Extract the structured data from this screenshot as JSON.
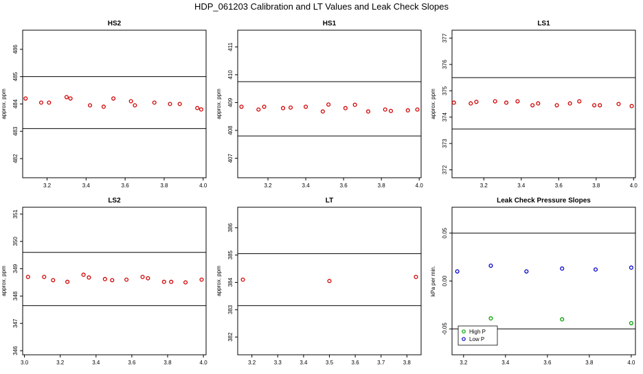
{
  "title": "HDP_061203  Calibration and LT Values and Leak Check Slopes",
  "chart_data": [
    {
      "type": "scatter",
      "title": "HS2",
      "ylabel": "approx. ppm",
      "xlim": [
        3.075,
        4.015
      ],
      "ylim": [
        481.3,
        486.7
      ],
      "xticks": [
        "3.2",
        "3.4",
        "3.6",
        "3.8",
        "4.0"
      ],
      "yticks": [
        "482",
        "483",
        "484",
        "485",
        "486"
      ],
      "hlines": [
        485.0,
        483.1
      ],
      "series": [
        {
          "color": "#d00000",
          "points": [
            [
              3.09,
              484.2
            ],
            [
              3.17,
              484.05
            ],
            [
              3.21,
              484.05
            ],
            [
              3.3,
              484.25
            ],
            [
              3.32,
              484.2
            ],
            [
              3.42,
              483.95
            ],
            [
              3.49,
              483.9
            ],
            [
              3.54,
              484.2
            ],
            [
              3.63,
              484.1
            ],
            [
              3.65,
              483.95
            ],
            [
              3.75,
              484.05
            ],
            [
              3.83,
              484.0
            ],
            [
              3.88,
              484.0
            ],
            [
              3.97,
              483.85
            ],
            [
              3.99,
              483.8
            ]
          ]
        }
      ]
    },
    {
      "type": "scatter",
      "title": "HS1",
      "ylabel": "approx. ppm",
      "xlim": [
        3.04,
        4.01
      ],
      "ylim": [
        406.3,
        411.6
      ],
      "xticks": [
        "3.2",
        "3.4",
        "3.6",
        "3.8",
        "4.0"
      ],
      "yticks": [
        "407",
        "408",
        "409",
        "410",
        "411"
      ],
      "hlines": [
        409.75,
        407.8
      ],
      "series": [
        {
          "color": "#d00000",
          "points": [
            [
              3.06,
              408.85
            ],
            [
              3.15,
              408.75
            ],
            [
              3.18,
              408.85
            ],
            [
              3.28,
              408.8
            ],
            [
              3.32,
              408.82
            ],
            [
              3.4,
              408.85
            ],
            [
              3.49,
              408.68
            ],
            [
              3.52,
              408.93
            ],
            [
              3.61,
              408.8
            ],
            [
              3.66,
              408.92
            ],
            [
              3.73,
              408.68
            ],
            [
              3.82,
              408.75
            ],
            [
              3.85,
              408.7
            ],
            [
              3.94,
              408.72
            ],
            [
              3.99,
              408.75
            ]
          ]
        }
      ]
    },
    {
      "type": "scatter",
      "title": "LS1",
      "ylabel": "approx. ppm",
      "xlim": [
        3.03,
        4.01
      ],
      "ylim": [
        371.7,
        377.3
      ],
      "xticks": [
        "3.2",
        "3.4",
        "3.6",
        "3.8",
        "4.0"
      ],
      "yticks": [
        "372",
        "373",
        "374",
        "375",
        "376",
        "377"
      ],
      "hlines": [
        375.5,
        373.55
      ],
      "series": [
        {
          "color": "#d00000",
          "points": [
            [
              3.04,
              374.55
            ],
            [
              3.13,
              374.52
            ],
            [
              3.16,
              374.58
            ],
            [
              3.26,
              374.6
            ],
            [
              3.32,
              374.55
            ],
            [
              3.38,
              374.6
            ],
            [
              3.46,
              374.45
            ],
            [
              3.49,
              374.52
            ],
            [
              3.59,
              374.45
            ],
            [
              3.66,
              374.52
            ],
            [
              3.71,
              374.6
            ],
            [
              3.79,
              374.45
            ],
            [
              3.82,
              374.45
            ],
            [
              3.92,
              374.5
            ],
            [
              3.99,
              374.42
            ]
          ]
        }
      ]
    },
    {
      "type": "scatter",
      "title": "LS2",
      "ylabel": "approx. ppm",
      "xlim": [
        2.99,
        4.015
      ],
      "ylim": [
        345.85,
        351.25
      ],
      "xticks": [
        "3.0",
        "3.2",
        "3.4",
        "3.6",
        "3.8",
        "4.0"
      ],
      "yticks": [
        "346",
        "347",
        "348",
        "349",
        "350",
        "351"
      ],
      "hlines": [
        349.6,
        347.65
      ],
      "series": [
        {
          "color": "#d00000",
          "points": [
            [
              3.02,
              348.7
            ],
            [
              3.11,
              348.7
            ],
            [
              3.16,
              348.58
            ],
            [
              3.24,
              348.52
            ],
            [
              3.33,
              348.78
            ],
            [
              3.36,
              348.68
            ],
            [
              3.45,
              348.62
            ],
            [
              3.49,
              348.58
            ],
            [
              3.57,
              348.6
            ],
            [
              3.66,
              348.7
            ],
            [
              3.69,
              348.65
            ],
            [
              3.78,
              348.52
            ],
            [
              3.82,
              348.52
            ],
            [
              3.9,
              348.5
            ],
            [
              3.99,
              348.6
            ]
          ]
        }
      ]
    },
    {
      "type": "scatter",
      "title": "LT",
      "ylabel": "approx. ppm",
      "xlim": [
        3.145,
        3.855
      ],
      "ylim": [
        381.35,
        386.75
      ],
      "xticks": [
        "3.2",
        "3.3",
        "3.4",
        "3.5",
        "3.6",
        "3.7",
        "3.8"
      ],
      "yticks": [
        "382",
        "383",
        "384",
        "385",
        "386"
      ],
      "hlines": [
        385.05,
        383.15
      ],
      "series": [
        {
          "color": "#d00000",
          "points": [
            [
              3.165,
              384.1
            ],
            [
              3.5,
              384.05
            ],
            [
              3.835,
              384.2
            ]
          ]
        }
      ]
    },
    {
      "type": "scatter",
      "title": "Leak Check Pressure Slopes",
      "ylabel": "kPa per min.",
      "xlim": [
        3.145,
        4.02
      ],
      "ylim": [
        -0.077,
        0.077
      ],
      "xticks": [
        "3.2",
        "3.4",
        "3.6",
        "3.8",
        "4.0"
      ],
      "yticks": [
        "-0.05",
        "0.00",
        "0.05"
      ],
      "hlines": [
        0.05,
        -0.05
      ],
      "legend": {
        "position": "bottom-left",
        "entries": [
          {
            "label": "High P",
            "color": "#00a000"
          },
          {
            "label": "Low P",
            "color": "#0000c8"
          }
        ]
      },
      "series": [
        {
          "name": "High P",
          "color": "#00a000",
          "points": [
            [
              3.33,
              -0.039
            ],
            [
              3.67,
              -0.04
            ],
            [
              4.0,
              -0.044
            ]
          ]
        },
        {
          "name": "Low P",
          "color": "#0000c8",
          "points": [
            [
              3.17,
              0.01
            ],
            [
              3.33,
              0.016
            ],
            [
              3.5,
              0.01
            ],
            [
              3.67,
              0.013
            ],
            [
              3.83,
              0.012
            ],
            [
              4.0,
              0.014
            ]
          ]
        }
      ]
    }
  ]
}
